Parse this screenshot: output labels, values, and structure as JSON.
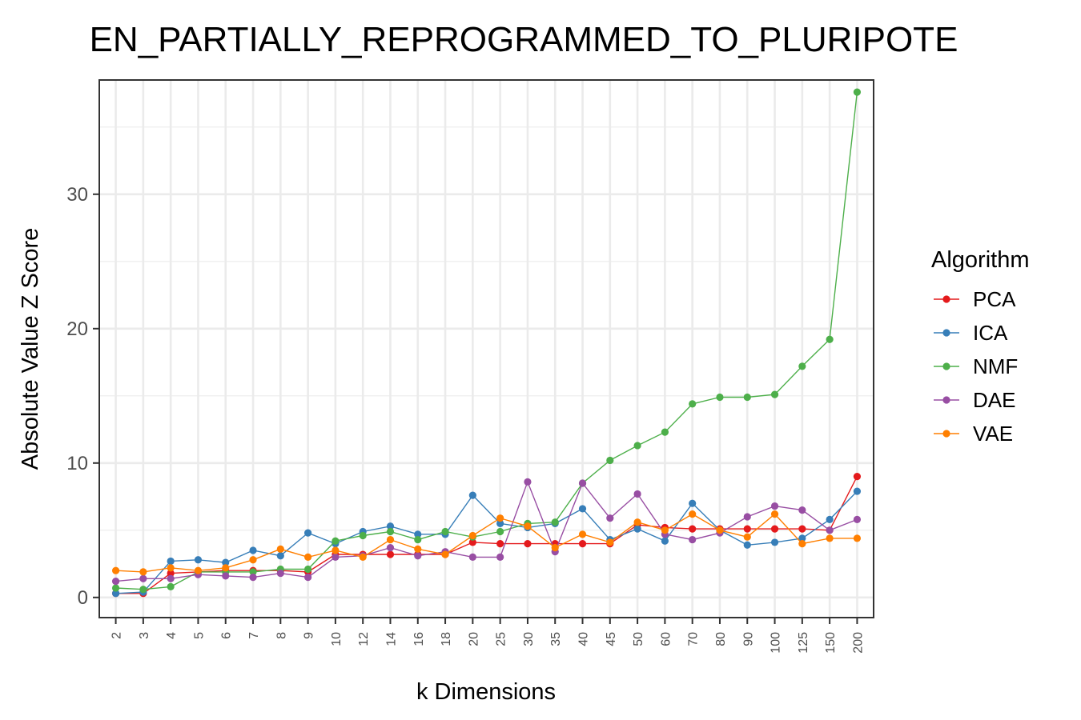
{
  "chart_data": {
    "type": "line",
    "title": "EN_PARTIALLY_REPROGRAMMED_TO_PLURIPOTE",
    "xlabel": "k Dimensions",
    "ylabel": "Absolute Value Z Score",
    "categories": [
      "2",
      "3",
      "4",
      "5",
      "6",
      "7",
      "8",
      "9",
      "10",
      "12",
      "14",
      "16",
      "18",
      "20",
      "25",
      "30",
      "35",
      "40",
      "45",
      "50",
      "60",
      "70",
      "80",
      "90",
      "100",
      "125",
      "150",
      "200"
    ],
    "ylim": [
      -1.5,
      38.5
    ],
    "yticks": [
      0,
      10,
      20,
      30
    ],
    "grid": true,
    "legend": {
      "title": "Algorithm",
      "position": "right"
    },
    "series": [
      {
        "name": "PCA",
        "color": "#e41a1c",
        "values": [
          0.3,
          0.3,
          1.8,
          1.9,
          2.0,
          2.0,
          2.0,
          1.9,
          3.2,
          3.2,
          3.2,
          3.2,
          3.2,
          4.1,
          4.0,
          4.0,
          4.0,
          4.0,
          4.0,
          5.4,
          5.2,
          5.1,
          5.1,
          5.1,
          5.1,
          5.1,
          5.0,
          9.0
        ]
      },
      {
        "name": "ICA",
        "color": "#377eb8",
        "values": [
          0.3,
          0.4,
          2.7,
          2.8,
          2.6,
          3.5,
          3.1,
          4.8,
          4.0,
          4.9,
          5.3,
          4.7,
          4.7,
          7.6,
          5.5,
          5.2,
          5.5,
          6.6,
          4.3,
          5.1,
          4.2,
          7.0,
          5.0,
          3.9,
          4.1,
          4.4,
          5.8,
          7.9
        ]
      },
      {
        "name": "NMF",
        "color": "#4daf4a",
        "values": [
          0.7,
          0.6,
          0.8,
          1.9,
          1.9,
          1.9,
          2.1,
          2.1,
          4.2,
          4.6,
          4.9,
          4.3,
          4.9,
          4.5,
          4.9,
          5.5,
          5.6,
          8.5,
          10.2,
          11.3,
          12.3,
          14.4,
          14.9,
          14.9,
          15.1,
          17.2,
          19.2,
          37.6
        ]
      },
      {
        "name": "DAE",
        "color": "#984ea3",
        "values": [
          1.2,
          1.4,
          1.4,
          1.7,
          1.6,
          1.5,
          1.8,
          1.5,
          3.0,
          3.1,
          3.7,
          3.1,
          3.4,
          3.0,
          3.0,
          8.6,
          3.4,
          8.5,
          5.9,
          7.7,
          4.7,
          4.3,
          4.8,
          6.0,
          6.8,
          6.5,
          5.0,
          5.8
        ]
      },
      {
        "name": "VAE",
        "color": "#ff7f00",
        "values": [
          2.0,
          1.9,
          2.2,
          2.0,
          2.2,
          2.8,
          3.6,
          3.0,
          3.5,
          3.0,
          4.3,
          3.6,
          3.2,
          4.6,
          5.9,
          5.3,
          3.7,
          4.7,
          4.1,
          5.6,
          5.0,
          6.2,
          5.0,
          4.5,
          6.2,
          4.0,
          4.4,
          4.4
        ]
      }
    ]
  }
}
